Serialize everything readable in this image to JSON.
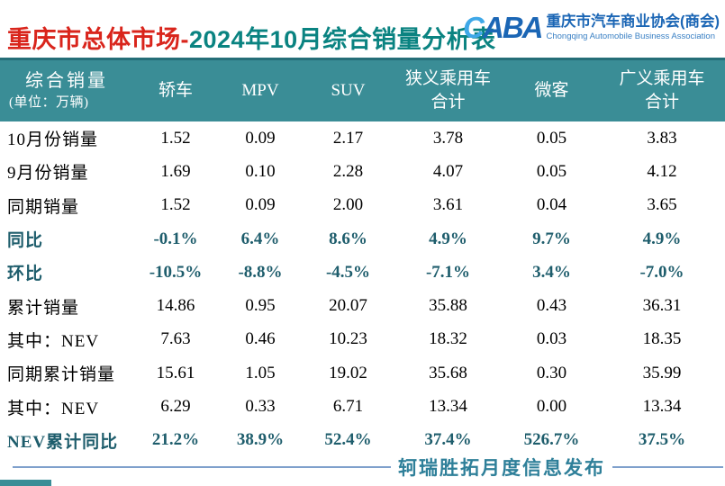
{
  "title": {
    "red": "重庆市总体市场-",
    "teal": "2024年10月综合销量分析表"
  },
  "logo": {
    "acronym": "CABA",
    "org_cn": "重庆市汽车商业协会(商会)",
    "org_en": "Chongqing Automobile Business Association"
  },
  "table": {
    "corner": {
      "line1": "综合销量",
      "line2": "(单位：万辆)"
    },
    "columns": [
      {
        "l1": "轿车"
      },
      {
        "l1": "MPV"
      },
      {
        "l1": "SUV"
      },
      {
        "l1": "狭义乘用车",
        "l2": "合计"
      },
      {
        "l1": "微客"
      },
      {
        "l1": "广义乘用车",
        "l2": "合计"
      }
    ],
    "rows": [
      {
        "label": "10月份销量",
        "values": [
          "1.52",
          "0.09",
          "2.17",
          "3.78",
          "0.05",
          "3.83"
        ]
      },
      {
        "label": "9月份销量",
        "values": [
          "1.69",
          "0.10",
          "2.28",
          "4.07",
          "0.05",
          "4.12"
        ]
      },
      {
        "label": "同期销量",
        "values": [
          "1.52",
          "0.09",
          "2.00",
          "3.61",
          "0.04",
          "3.65"
        ]
      },
      {
        "label": "同比",
        "values": [
          "-0.1%",
          "6.4%",
          "8.6%",
          "4.9%",
          "9.7%",
          "4.9%"
        ]
      },
      {
        "label": "环比",
        "values": [
          "-10.5%",
          "-8.8%",
          "-4.5%",
          "-7.1%",
          "3.4%",
          "-7.0%"
        ]
      },
      {
        "label": "累计销量",
        "values": [
          "14.86",
          "0.95",
          "20.07",
          "35.88",
          "0.43",
          "36.31"
        ]
      },
      {
        "label": "其中：NEV",
        "values": [
          "7.63",
          "0.46",
          "10.23",
          "18.32",
          "0.03",
          "18.35"
        ]
      },
      {
        "label": "同期累计销量",
        "values": [
          "15.61",
          "1.05",
          "19.02",
          "35.68",
          "0.30",
          "35.99"
        ]
      },
      {
        "label": "其中：NEV",
        "values": [
          "6.29",
          "0.33",
          "6.71",
          "13.34",
          "0.00",
          "13.34"
        ]
      },
      {
        "label": "NEV累计同比",
        "values": [
          "21.2%",
          "38.9%",
          "52.4%",
          "37.4%",
          "526.7%",
          "37.5%"
        ]
      }
    ]
  },
  "footer": {
    "text": "轲瑞胜拓月度信息发布"
  },
  "colors": {
    "header_teal": "#3A8D96",
    "title_red": "#D9251C",
    "title_teal": "#0A8381",
    "emphasis_teal": "#1E5D6C",
    "logo_blue": "#1B66B5",
    "footer_line_blue": "#7FA0CC",
    "footer_text_teal": "#2E7F99"
  }
}
